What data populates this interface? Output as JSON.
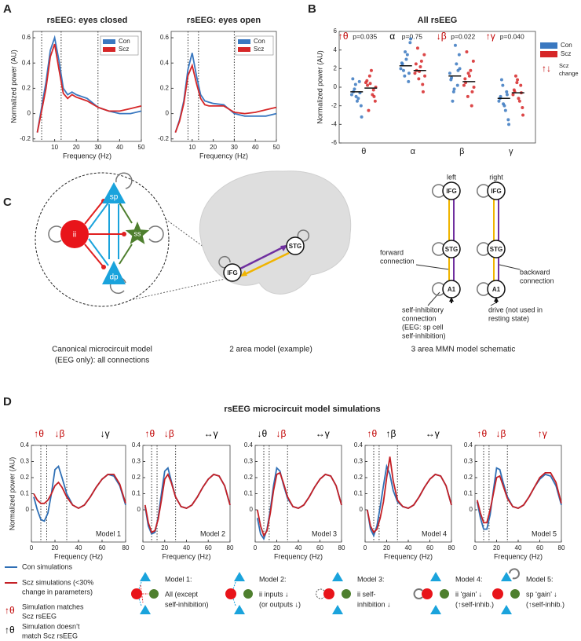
{
  "panel_labels": [
    "A",
    "B",
    "C",
    "D"
  ],
  "chart_data": [
    {
      "type": "line",
      "title": "rsEEG: eyes closed",
      "xlabel": "Frequency (Hz)",
      "ylabel": "Normalized power (AU)",
      "x": [
        2,
        4,
        6,
        8,
        10,
        12,
        14,
        16,
        18,
        20,
        25,
        30,
        35,
        40,
        45,
        50
      ],
      "xlim": [
        0,
        50
      ],
      "xticks": [
        10,
        20,
        30,
        40,
        50
      ],
      "ylim": [
        -0.22,
        0.65
      ],
      "yticks": [
        -0.2,
        0,
        0.2,
        0.4,
        0.6
      ],
      "vlines": [
        4,
        13,
        30
      ],
      "legend": "upper right",
      "series": [
        {
          "name": "Con",
          "color": "#3a78c0",
          "values": [
            -0.15,
            0.05,
            0.25,
            0.5,
            0.6,
            0.42,
            0.2,
            0.15,
            0.17,
            0.15,
            0.12,
            0.05,
            0.02,
            0,
            0,
            0.02
          ]
        },
        {
          "name": "Scz",
          "color": "#d62728",
          "values": [
            -0.15,
            0.02,
            0.2,
            0.45,
            0.55,
            0.35,
            0.16,
            0.12,
            0.15,
            0.13,
            0.1,
            0.05,
            0.02,
            0.02,
            0.04,
            0.06
          ]
        }
      ]
    },
    {
      "type": "line",
      "title": "rsEEG: eyes open",
      "xlabel": "Frequency (Hz)",
      "x": [
        2,
        4,
        6,
        8,
        10,
        12,
        14,
        16,
        18,
        20,
        25,
        30,
        35,
        40,
        45,
        50
      ],
      "xlim": [
        0,
        50
      ],
      "xticks": [
        10,
        20,
        30,
        40,
        50
      ],
      "ylim": [
        -0.22,
        0.65
      ],
      "yticks": [
        -0.2,
        0,
        0.2,
        0.4,
        0.6
      ],
      "vlines": [
        8,
        13,
        30
      ],
      "legend": "upper right",
      "series": [
        {
          "name": "Con",
          "color": "#3a78c0",
          "values": [
            -0.15,
            -0.05,
            0.1,
            0.35,
            0.48,
            0.3,
            0.15,
            0.1,
            0.09,
            0.08,
            0.07,
            0,
            -0.02,
            -0.02,
            -0.02,
            0
          ]
        },
        {
          "name": "Scz",
          "color": "#d62728",
          "values": [
            -0.15,
            -0.06,
            0.08,
            0.3,
            0.38,
            0.24,
            0.12,
            0.07,
            0.06,
            0.06,
            0.06,
            0.01,
            0,
            0.01,
            0.03,
            0.05
          ]
        }
      ]
    },
    {
      "type": "strip",
      "title": "All rsEEG",
      "ylabel": "Normalized power (AU)",
      "categories": [
        "θ",
        "α",
        "β",
        "γ"
      ],
      "ylim": [
        -6,
        6
      ],
      "yticks": [
        -6,
        -4,
        -2,
        0,
        2,
        4,
        6
      ],
      "effects": [
        "↑θ",
        "α",
        "↓β",
        "↑γ"
      ],
      "effect_colors": [
        "#c00000",
        "#000000",
        "#c00000",
        "#c00000"
      ],
      "p_values": [
        "p=0.035",
        "p=0.75",
        "p=0.022",
        "p=0.040"
      ],
      "legend_note": {
        "symbol": "↑↓",
        "color": "#c00000",
        "lines": [
          "Scz",
          "change"
        ]
      },
      "series": [
        {
          "name": "Con",
          "color": "#3a78c0",
          "means": [
            -0.5,
            2.3,
            1.2,
            -1.2
          ],
          "points": [
            [
              -0.5,
              -1.2,
              0.3,
              -2,
              -0.8,
              0.6,
              -1.5,
              -0.2,
              -3.2,
              0.9,
              -0.6,
              -1
            ],
            [
              2.5,
              3.5,
              1.2,
              4.8,
              2,
              0.6,
              3,
              1.8,
              5.2,
              2.6,
              1.5,
              3.8
            ],
            [
              1,
              2.5,
              -0.5,
              3.5,
              1.5,
              0.2,
              4.5,
              -1.5,
              2,
              0.8,
              1.8,
              -0.2
            ],
            [
              -1,
              -2.5,
              0.2,
              -3.5,
              -1.5,
              -0.5,
              -2,
              0.8,
              -4,
              -1.2,
              -0.8,
              -1.8
            ]
          ]
        },
        {
          "name": "Scz",
          "color": "#d62728",
          "means": [
            -0.1,
            1.8,
            0.6,
            -0.6
          ],
          "points": [
            [
              0.2,
              -0.8,
              1.2,
              -1.5,
              0.5,
              -0.3,
              1.8,
              -2.5,
              0,
              0.7,
              -1,
              0.4
            ],
            [
              1.8,
              2.8,
              0.9,
              3.5,
              1.5,
              0.3,
              2.2,
              4.2,
              1.2,
              2.5,
              -0.5,
              1.7
            ],
            [
              0.5,
              1.8,
              -1,
              2.8,
              0.2,
              -2,
              1.2,
              3.8,
              0,
              0.9,
              -0.5,
              1.5
            ],
            [
              -0.5,
              -1.5,
              0.5,
              -2.2,
              -0.8,
              0.2,
              -1.2,
              1.2,
              -3,
              -0.3,
              -0.6,
              0.8
            ]
          ]
        }
      ]
    },
    {
      "type": "line",
      "xlabel": "Frequency (Hz)",
      "ylabel": "Normalized power (AU)",
      "annotation": "Model 1",
      "x": [
        2,
        5,
        8,
        11,
        14,
        17,
        20,
        23,
        26,
        30,
        35,
        40,
        45,
        50,
        55,
        60,
        65,
        70,
        75,
        80
      ],
      "xlim": [
        0,
        80
      ],
      "xticks": [
        0,
        20,
        40,
        60,
        80
      ],
      "ylim": [
        -0.2,
        0.4
      ],
      "yticks": [
        0,
        0.1,
        0.2,
        0.3,
        0.4
      ],
      "vlines": [
        8,
        13,
        30
      ],
      "markers": [
        {
          "text": "↑θ",
          "color": "#c00000"
        },
        {
          "text": "↓β",
          "color": "#c00000"
        },
        {
          "text": "↓γ",
          "color": "#000000"
        }
      ],
      "series": [
        {
          "color": "#2f6fb5",
          "values": [
            0.08,
            0,
            -0.06,
            -0.07,
            -0.02,
            0.1,
            0.25,
            0.27,
            0.2,
            0.1,
            0.03,
            0.01,
            0.03,
            0.08,
            0.14,
            0.19,
            0.22,
            0.21,
            0.15,
            0.03
          ]
        },
        {
          "color": "#c42026",
          "values": [
            0.1,
            0.06,
            0.04,
            0.04,
            0.06,
            0.1,
            0.15,
            0.17,
            0.14,
            0.08,
            0.03,
            0.01,
            0.03,
            0.08,
            0.14,
            0.19,
            0.22,
            0.22,
            0.16,
            0.04
          ]
        }
      ]
    },
    {
      "type": "line",
      "xlabel": "Frequency (Hz)",
      "annotation": "Model 2",
      "x": [
        2,
        5,
        8,
        11,
        14,
        17,
        20,
        23,
        26,
        30,
        35,
        40,
        45,
        50,
        55,
        60,
        65,
        70,
        75,
        80
      ],
      "xlim": [
        0,
        80
      ],
      "xticks": [
        0,
        20,
        40,
        60,
        80
      ],
      "ylim": [
        -0.2,
        0.4
      ],
      "yticks": [
        0,
        0.1,
        0.2,
        0.3,
        0.4
      ],
      "vlines": [
        8,
        13,
        30
      ],
      "markers": [
        {
          "text": "↑θ",
          "color": "#c00000"
        },
        {
          "text": "↓β",
          "color": "#c00000"
        },
        {
          "text": "↔γ",
          "color": "#000000"
        }
      ],
      "series": [
        {
          "color": "#2f6fb5",
          "values": [
            0.02,
            -0.1,
            -0.15,
            -0.14,
            -0.05,
            0.1,
            0.24,
            0.26,
            0.18,
            0.08,
            0.02,
            0.01,
            0.03,
            0.08,
            0.14,
            0.19,
            0.22,
            0.21,
            0.15,
            0.03
          ]
        },
        {
          "color": "#c42026",
          "values": [
            0.03,
            -0.08,
            -0.14,
            -0.13,
            -0.06,
            0.06,
            0.19,
            0.22,
            0.17,
            0.08,
            0.02,
            0.01,
            0.03,
            0.08,
            0.14,
            0.19,
            0.22,
            0.21,
            0.15,
            0.03
          ]
        }
      ]
    },
    {
      "type": "line",
      "xlabel": "Frequency (Hz)",
      "annotation": "Model 3",
      "x": [
        2,
        5,
        8,
        11,
        14,
        17,
        20,
        23,
        26,
        30,
        35,
        40,
        45,
        50,
        55,
        60,
        65,
        70,
        75,
        80
      ],
      "xlim": [
        0,
        80
      ],
      "xticks": [
        0,
        20,
        40,
        60,
        80
      ],
      "ylim": [
        -0.2,
        0.4
      ],
      "yticks": [
        0,
        0.1,
        0.2,
        0.3,
        0.4
      ],
      "vlines": [
        8,
        13,
        30
      ],
      "markers": [
        {
          "text": "↓θ",
          "color": "#000000"
        },
        {
          "text": "↓β",
          "color": "#c00000"
        },
        {
          "text": "↔γ",
          "color": "#000000"
        }
      ],
      "series": [
        {
          "color": "#2f6fb5",
          "values": [
            -0.05,
            -0.15,
            -0.18,
            -0.12,
            0,
            0.15,
            0.26,
            0.24,
            0.16,
            0.07,
            0.02,
            0.01,
            0.03,
            0.08,
            0.14,
            0.19,
            0.22,
            0.21,
            0.15,
            0.03
          ]
        },
        {
          "color": "#c42026",
          "values": [
            0,
            -0.1,
            -0.16,
            -0.13,
            -0.02,
            0.12,
            0.22,
            0.23,
            0.17,
            0.08,
            0.02,
            0.01,
            0.03,
            0.08,
            0.14,
            0.19,
            0.22,
            0.21,
            0.15,
            0.03
          ]
        }
      ]
    },
    {
      "type": "line",
      "xlabel": "Frequency (Hz)",
      "annotation": "Model 4",
      "x": [
        2,
        5,
        8,
        11,
        14,
        17,
        20,
        23,
        26,
        30,
        35,
        40,
        45,
        50,
        55,
        60,
        65,
        70,
        75,
        80
      ],
      "xlim": [
        0,
        80
      ],
      "xticks": [
        0,
        20,
        40,
        60,
        80
      ],
      "ylim": [
        -0.2,
        0.4
      ],
      "yticks": [
        0,
        0.1,
        0.2,
        0.3,
        0.4
      ],
      "vlines": [
        8,
        13,
        30
      ],
      "markers": [
        {
          "text": "↑θ",
          "color": "#c00000"
        },
        {
          "text": "↑β",
          "color": "#000000"
        },
        {
          "text": "↔γ",
          "color": "#000000"
        }
      ],
      "series": [
        {
          "color": "#2f6fb5",
          "values": [
            0,
            -0.12,
            -0.16,
            -0.1,
            0.02,
            0.15,
            0.27,
            0.22,
            0.12,
            0.05,
            0.02,
            0.01,
            0.03,
            0.08,
            0.14,
            0.19,
            0.22,
            0.21,
            0.15,
            0.03
          ]
        },
        {
          "color": "#c42026",
          "values": [
            0,
            -0.1,
            -0.14,
            -0.12,
            -0.05,
            0.05,
            0.2,
            0.33,
            0.18,
            0.06,
            0.02,
            0.01,
            0.03,
            0.08,
            0.14,
            0.19,
            0.22,
            0.21,
            0.15,
            0.03
          ]
        }
      ]
    },
    {
      "type": "line",
      "xlabel": "Frequency (Hz)",
      "annotation": "Model 5",
      "x": [
        2,
        5,
        8,
        11,
        14,
        17,
        20,
        23,
        26,
        30,
        35,
        40,
        45,
        50,
        55,
        60,
        65,
        70,
        75,
        80
      ],
      "xlim": [
        0,
        80
      ],
      "xticks": [
        0,
        20,
        40,
        60,
        80
      ],
      "ylim": [
        -0.2,
        0.4
      ],
      "yticks": [
        0,
        0.1,
        0.2,
        0.3,
        0.4
      ],
      "vlines": [
        8,
        13,
        30
      ],
      "markers": [
        {
          "text": "↑θ",
          "color": "#c00000"
        },
        {
          "text": "↓β",
          "color": "#c00000"
        },
        {
          "text": "↑γ",
          "color": "#c00000"
        }
      ],
      "series": [
        {
          "color": "#2f6fb5",
          "values": [
            0.05,
            -0.05,
            -0.12,
            -0.12,
            -0.03,
            0.12,
            0.26,
            0.25,
            0.17,
            0.08,
            0.02,
            0.01,
            0.03,
            0.08,
            0.14,
            0.19,
            0.22,
            0.21,
            0.15,
            0.03
          ]
        },
        {
          "color": "#c42026",
          "values": [
            0.06,
            -0.02,
            -0.08,
            -0.08,
            0,
            0.1,
            0.2,
            0.21,
            0.15,
            0.07,
            0.02,
            0.01,
            0.03,
            0.08,
            0.14,
            0.2,
            0.23,
            0.23,
            0.17,
            0.04
          ]
        }
      ]
    }
  ],
  "panel_c": {
    "nodes": {
      "sp": "sp",
      "ii": "ii",
      "ss": "ss",
      "dp": "dp",
      "ifg": "IFG",
      "stg": "STG",
      "a1": "A1"
    },
    "columns": [
      "left",
      "right"
    ],
    "notes": {
      "forward": [
        "forward",
        "connection"
      ],
      "backward": [
        "backward",
        "connection"
      ],
      "self_inhibitory": [
        "self-inhibitory",
        "connection",
        "(EEG: sp cell",
        "self-inhibition)"
      ],
      "drive": [
        "drive (not used in",
        "resting state)"
      ]
    },
    "captions": {
      "microcircuit": [
        "Canonical microcircuit model",
        "(EEG only): all connections"
      ],
      "two_area": "2 area model (example)",
      "three_area": "3 area MMN model schematic"
    }
  },
  "panel_d": {
    "title": "rsEEG microcircuit model simulations",
    "legend": [
      {
        "line_color": "#2f6fb5",
        "lines": [
          "Con simulations"
        ]
      },
      {
        "line_color": "#c42026",
        "lines": [
          "Scz simulations (<30%",
          "change in parameters)"
        ]
      },
      {
        "symbol": "↑θ",
        "symbol_color": "#c00000",
        "lines": [
          "Simulation matches",
          "Scz rsEEG"
        ]
      },
      {
        "symbol": "↑θ",
        "symbol_color": "#000000",
        "lines": [
          "Simulation doesn’t",
          "match Scz rsEEG"
        ]
      }
    ],
    "models": [
      {
        "name": "Model 1:",
        "lines": [
          "All (except",
          "self-inhibition)"
        ]
      },
      {
        "name": "Model 2:",
        "lines": [
          "ii inputs ↓",
          "(or outputs ↓)"
        ]
      },
      {
        "name": "Model 3:",
        "lines": [
          "ii self-",
          "inhibition ↓"
        ]
      },
      {
        "name": "Model 4:",
        "lines": [
          "ii ‘gain’ ↓",
          "(↑self-inhib.)"
        ]
      },
      {
        "name": "Model 5:",
        "lines": [
          "sp ‘gain’ ↓",
          "(↑self-inhib.)"
        ]
      }
    ]
  }
}
